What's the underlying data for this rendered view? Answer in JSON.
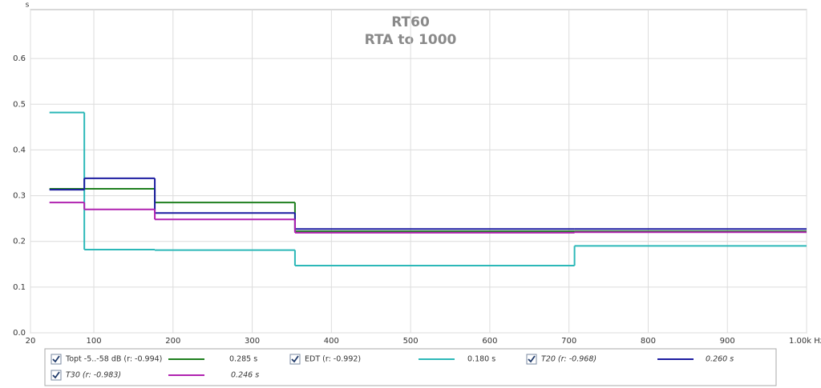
{
  "chart_data": {
    "type": "step-line",
    "title": "RT60",
    "subtitle": "RTA to 1000",
    "y_unit": "s",
    "xlim": [
      20,
      1000
    ],
    "ylim": [
      0,
      0.707
    ],
    "xticks": [
      20,
      100,
      200,
      300,
      400,
      500,
      600,
      700,
      800,
      900,
      {
        "value": 1000,
        "label": "1.00k Hz"
      }
    ],
    "yticks": [
      {
        "value": 0,
        "label": "0.0"
      },
      0.1,
      0.2,
      0.3,
      0.4,
      0.5,
      0.6
    ],
    "grid": true,
    "x": [
      44,
      88,
      177,
      354,
      707
    ],
    "series": [
      {
        "name": "Topt -5..-58 dB (r: -0.994)",
        "color": "#1e7f1e",
        "legend_value": "0.285 s",
        "italic": false,
        "values": [
          0.315,
          0.315,
          0.285,
          0.222,
          0.222
        ]
      },
      {
        "name": "EDT (r: -0.992)",
        "color": "#2cb8b8",
        "legend_value": "0.180 s",
        "italic": false,
        "values": [
          0.482,
          0.182,
          0.181,
          0.147,
          0.19
        ]
      },
      {
        "name": "T20 (r: -0.968)",
        "color": "#1c1ca0",
        "legend_value": "0.260 s",
        "italic": true,
        "values": [
          0.313,
          0.338,
          0.262,
          0.227,
          0.227
        ]
      },
      {
        "name": "T30 (r: -0.983)",
        "color": "#b022b0",
        "legend_value": "0.246 s",
        "italic": true,
        "values": [
          0.285,
          0.27,
          0.248,
          0.219,
          0.22
        ]
      }
    ]
  }
}
